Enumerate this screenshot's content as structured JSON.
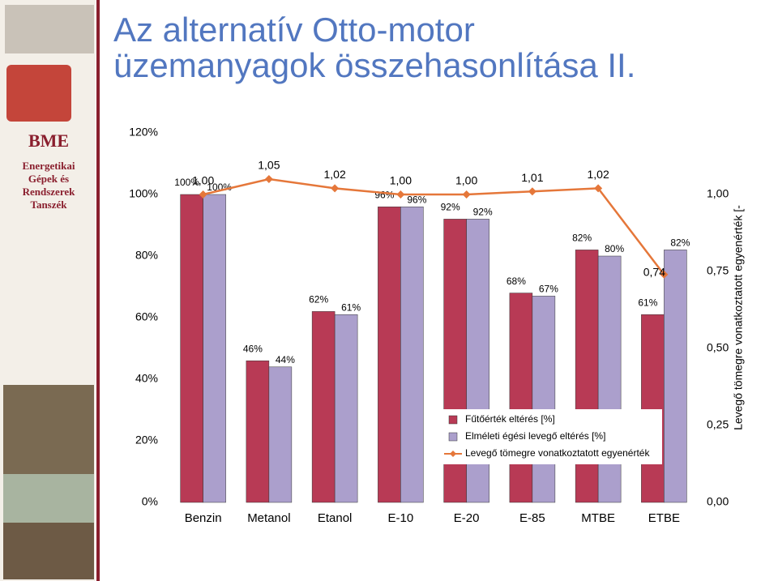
{
  "slide": {
    "title": [
      "Az alternatív Otto-motor",
      "üzemanyagok összehasonlítása II."
    ],
    "logo_text": "BME",
    "department": [
      "Energetikai",
      "Gépek és",
      "Rendszerek",
      "Tanszék"
    ]
  },
  "chart_data": {
    "type": "bar",
    "categories": [
      "Benzin",
      "Metanol",
      "Etanol",
      "E-10",
      "E-20",
      "E-85",
      "MTBE",
      "ETBE"
    ],
    "series": [
      {
        "name": "Fűtőérték eltérés [%]",
        "color": "#b83a55",
        "values": [
          100,
          46,
          62,
          96,
          92,
          68,
          82,
          61
        ],
        "value_labels": [
          "100%",
          "46%",
          "62%",
          "96%",
          "92%",
          "68%",
          "82%",
          "61%"
        ]
      },
      {
        "name": "Elméleti égési levegő eltérés [%]",
        "color": "#ab9fcc",
        "values": [
          100,
          44,
          61,
          96,
          92,
          67,
          80,
          82
        ],
        "value_labels": [
          "100%",
          "44%",
          "61%",
          "96%",
          "92%",
          "67%",
          "80%",
          "82%"
        ]
      },
      {
        "name": "Levegő tömegre vonatkoztatott egyenérték",
        "type": "line",
        "axis": "y2",
        "color": "#e5773a",
        "values": [
          1.0,
          1.05,
          1.02,
          1.0,
          1.0,
          1.01,
          1.02,
          0.74
        ],
        "value_labels": [
          "1,00",
          "1,05",
          "1,02",
          "1,00",
          "1,00",
          "1,01",
          "1,02",
          "0,74"
        ]
      }
    ],
    "ylim": [
      0,
      120
    ],
    "yticks": [
      {
        "value": 0,
        "label": "0%"
      },
      {
        "value": 20,
        "label": "20%"
      },
      {
        "value": 40,
        "label": "40%"
      },
      {
        "value": 60,
        "label": "60%"
      },
      {
        "value": 80,
        "label": "80%"
      },
      {
        "value": 100,
        "label": "100%"
      },
      {
        "value": 120,
        "label": "120%"
      }
    ],
    "y2lim": [
      0,
      1.2
    ],
    "y2ticks": [
      {
        "value": 0,
        "label": "0,00"
      },
      {
        "value": 0.25,
        "label": "0,25"
      },
      {
        "value": 0.5,
        "label": "0,50"
      },
      {
        "value": 0.75,
        "label": "0,75"
      },
      {
        "value": 1,
        "label": "1,00"
      }
    ],
    "y2label": "Levegő tömegre vonatkoztatott egyenérték [-",
    "legend": "inside-bottom-right"
  }
}
